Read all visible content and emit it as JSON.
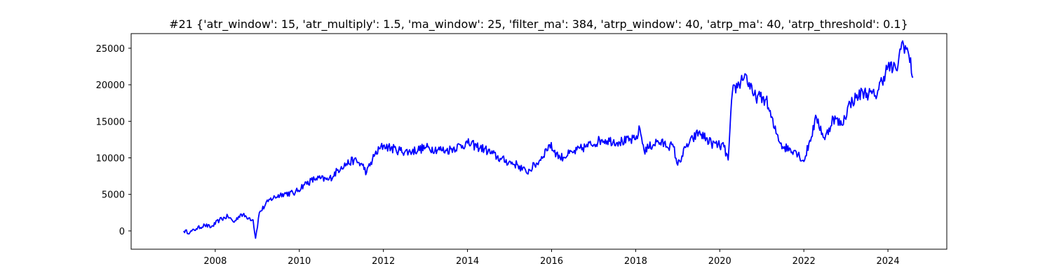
{
  "chart_data": {
    "type": "line",
    "title": "#21 {'atr_window': 15, 'atr_multiply': 1.5, 'ma_window': 25, 'filter_ma': 384, 'atrp_window': 40, 'atrp_ma': 40, 'atrp_threshold': 0.1}",
    "xlabel": "",
    "ylabel": "",
    "xlim": [
      2006.0,
      2025.4
    ],
    "ylim": [
      -2500,
      27000
    ],
    "x_ticks": [
      2008,
      2010,
      2012,
      2014,
      2016,
      2018,
      2020,
      2022,
      2024
    ],
    "x_tick_labels": [
      "2008",
      "2010",
      "2012",
      "2014",
      "2016",
      "2018",
      "2020",
      "2022",
      "2024"
    ],
    "y_ticks": [
      0,
      5000,
      10000,
      15000,
      20000,
      25000
    ],
    "y_tick_labels": [
      "0",
      "5000",
      "10000",
      "15000",
      "20000",
      "25000"
    ],
    "grid": false,
    "legend": "none",
    "series": [
      {
        "color": "#0000ff",
        "points": [
          [
            2007.25,
            0
          ],
          [
            2007.4,
            -200
          ],
          [
            2007.55,
            300
          ],
          [
            2007.75,
            800
          ],
          [
            2007.9,
            500
          ],
          [
            2008.1,
            1500
          ],
          [
            2008.3,
            2000
          ],
          [
            2008.45,
            1200
          ],
          [
            2008.6,
            2300
          ],
          [
            2008.8,
            1800
          ],
          [
            2008.9,
            1500
          ],
          [
            2008.96,
            -1000
          ],
          [
            2009.05,
            2500
          ],
          [
            2009.3,
            4300
          ],
          [
            2009.6,
            5100
          ],
          [
            2009.9,
            5200
          ],
          [
            2010.1,
            6300
          ],
          [
            2010.4,
            7200
          ],
          [
            2010.7,
            7000
          ],
          [
            2011.0,
            8800
          ],
          [
            2011.3,
            9700
          ],
          [
            2011.5,
            9000
          ],
          [
            2011.6,
            8000
          ],
          [
            2011.8,
            10500
          ],
          [
            2012.0,
            11700
          ],
          [
            2012.3,
            11100
          ],
          [
            2012.6,
            10800
          ],
          [
            2013.0,
            11400
          ],
          [
            2013.5,
            11000
          ],
          [
            2014.0,
            12000
          ],
          [
            2014.4,
            11200
          ],
          [
            2014.8,
            9800
          ],
          [
            2015.2,
            9000
          ],
          [
            2015.4,
            8000
          ],
          [
            2015.7,
            9500
          ],
          [
            2015.95,
            11800
          ],
          [
            2016.2,
            10000
          ],
          [
            2016.5,
            10700
          ],
          [
            2016.8,
            11500
          ],
          [
            2017.2,
            12500
          ],
          [
            2017.6,
            12200
          ],
          [
            2018.0,
            12500
          ],
          [
            2018.1,
            14000
          ],
          [
            2018.2,
            11000
          ],
          [
            2018.5,
            12200
          ],
          [
            2018.9,
            11500
          ],
          [
            2019.0,
            9000
          ],
          [
            2019.2,
            11500
          ],
          [
            2019.5,
            13500
          ],
          [
            2019.8,
            12000
          ],
          [
            2020.1,
            11500
          ],
          [
            2020.2,
            9700
          ],
          [
            2020.3,
            19000
          ],
          [
            2020.5,
            20500
          ],
          [
            2020.6,
            21500
          ],
          [
            2020.8,
            18500
          ],
          [
            2021.1,
            18000
          ],
          [
            2021.3,
            14000
          ],
          [
            2021.5,
            11500
          ],
          [
            2021.8,
            11000
          ],
          [
            2022.0,
            9500
          ],
          [
            2022.3,
            15500
          ],
          [
            2022.5,
            12500
          ],
          [
            2022.7,
            15500
          ],
          [
            2022.9,
            14500
          ],
          [
            2023.1,
            17500
          ],
          [
            2023.4,
            19000
          ],
          [
            2023.7,
            18500
          ],
          [
            2024.0,
            22500
          ],
          [
            2024.2,
            22000
          ],
          [
            2024.35,
            26000
          ],
          [
            2024.5,
            24000
          ],
          [
            2024.6,
            21000
          ]
        ]
      }
    ]
  }
}
